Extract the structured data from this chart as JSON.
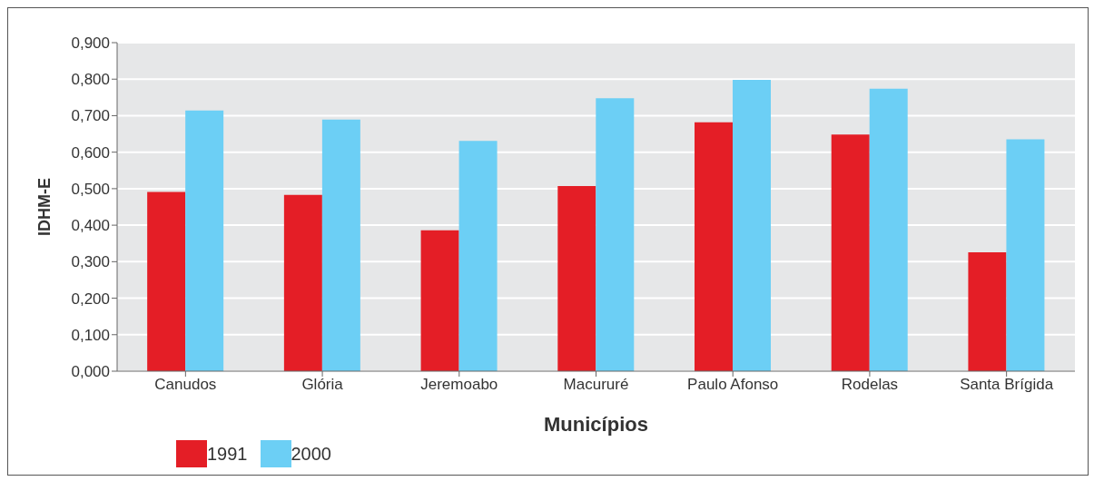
{
  "chart_data": {
    "type": "bar",
    "xlabel": "Municípios",
    "ylabel": "IDHM-E",
    "categories": [
      "Canudos",
      "Glória",
      "Jeremoabo",
      "Macururé",
      "Paulo Afonso",
      "Rodelas",
      "Santa Brígida"
    ],
    "series": [
      {
        "name": "1991",
        "color": "#e41e26",
        "values": [
          0.491,
          0.483,
          0.386,
          0.507,
          0.682,
          0.648,
          0.326
        ]
      },
      {
        "name": "2000",
        "color": "#6ccff5",
        "values": [
          0.714,
          0.689,
          0.631,
          0.748,
          0.798,
          0.774,
          0.635
        ]
      }
    ],
    "ylim": [
      0,
      0.9
    ],
    "yticks": [
      {
        "value": 0,
        "label": "0,000"
      },
      {
        "value": 0.1,
        "label": "0,100"
      },
      {
        "value": 0.2,
        "label": "0,200"
      },
      {
        "value": 0.3,
        "label": "0,300"
      },
      {
        "value": 0.4,
        "label": "0,400"
      },
      {
        "value": 0.5,
        "label": "0,500"
      },
      {
        "value": 0.6,
        "label": "0,600"
      },
      {
        "value": 0.7,
        "label": "0,700"
      },
      {
        "value": 0.8,
        "label": "0,800"
      },
      {
        "value": 0.9,
        "label": "0,900"
      }
    ],
    "grid": "y",
    "legend": "bottom left"
  }
}
